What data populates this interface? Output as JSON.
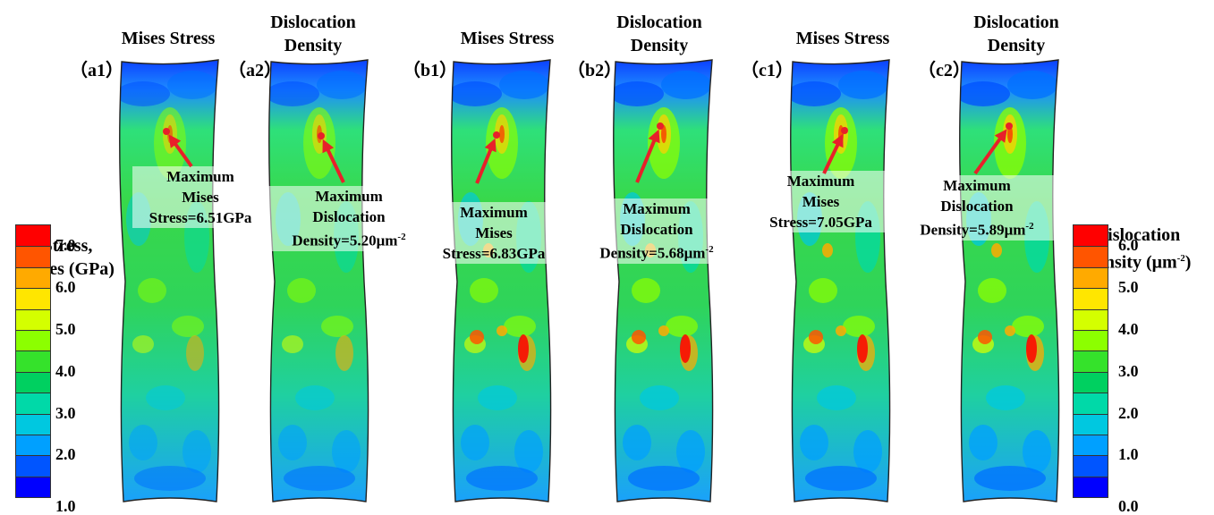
{
  "panels": [
    {
      "id": "a1",
      "label": "（a1）",
      "title": "Mises Stress",
      "annot": [
        "Maximum",
        "Mises",
        "Stress=6.51GPa"
      ]
    },
    {
      "id": "a2",
      "label": "（a2）",
      "title": "Dislocation Density",
      "title_lines": [
        "Dislocation",
        "Density"
      ],
      "annot": [
        "Maximum",
        "Dislocation",
        "Density=5.20μm"
      ],
      "annot_sup": "-2"
    },
    {
      "id": "b1",
      "label": "（b1）",
      "title": "Mises Stress",
      "annot": [
        "Maximum",
        "Mises",
        "Stress=6.83GPa"
      ]
    },
    {
      "id": "b2",
      "label": "（b2）",
      "title": "Dislocation Density",
      "title_lines": [
        "Dislocation",
        "Density"
      ],
      "annot": [
        "Maximum",
        "Dislocation",
        "Density=5.68μm"
      ],
      "annot_sup": "-2"
    },
    {
      "id": "c1",
      "label": "（c1）",
      "title": "Mises Stress",
      "annot": [
        "Maximum",
        "Mises",
        "Stress=7.05GPa"
      ]
    },
    {
      "id": "c2",
      "label": "（c2）",
      "title": "Dislocation Density",
      "title_lines": [
        "Dislocation",
        "Density"
      ],
      "annot": [
        "Maximum",
        "Dislocation",
        "Density=5.89μm"
      ],
      "annot_sup": "-2"
    }
  ],
  "legend_stress": {
    "title_lines": [
      "Stress,",
      "Mises (GPa)"
    ],
    "ticks": [
      "7.0",
      "6.0",
      "5.0",
      "4.0",
      "3.0",
      "2.0",
      "1.0"
    ]
  },
  "legend_dislocation": {
    "title_lines": [
      "Dislocation",
      "Density (μm"
    ],
    "title_sup": "-2",
    "title_tail": ")",
    "ticks": [
      "6.0",
      "5.0",
      "4.0",
      "3.0",
      "2.0",
      "1.0",
      "0.0"
    ]
  },
  "colors": {
    "scale": [
      "#ff0000",
      "#ff5500",
      "#ffaa00",
      "#ffe600",
      "#d4ff00",
      "#8cff00",
      "#35e22b",
      "#00d060",
      "#00d9a8",
      "#00c8e0",
      "#00a0ff",
      "#0055ff",
      "#0000ff"
    ],
    "marker": "#e8202a"
  }
}
